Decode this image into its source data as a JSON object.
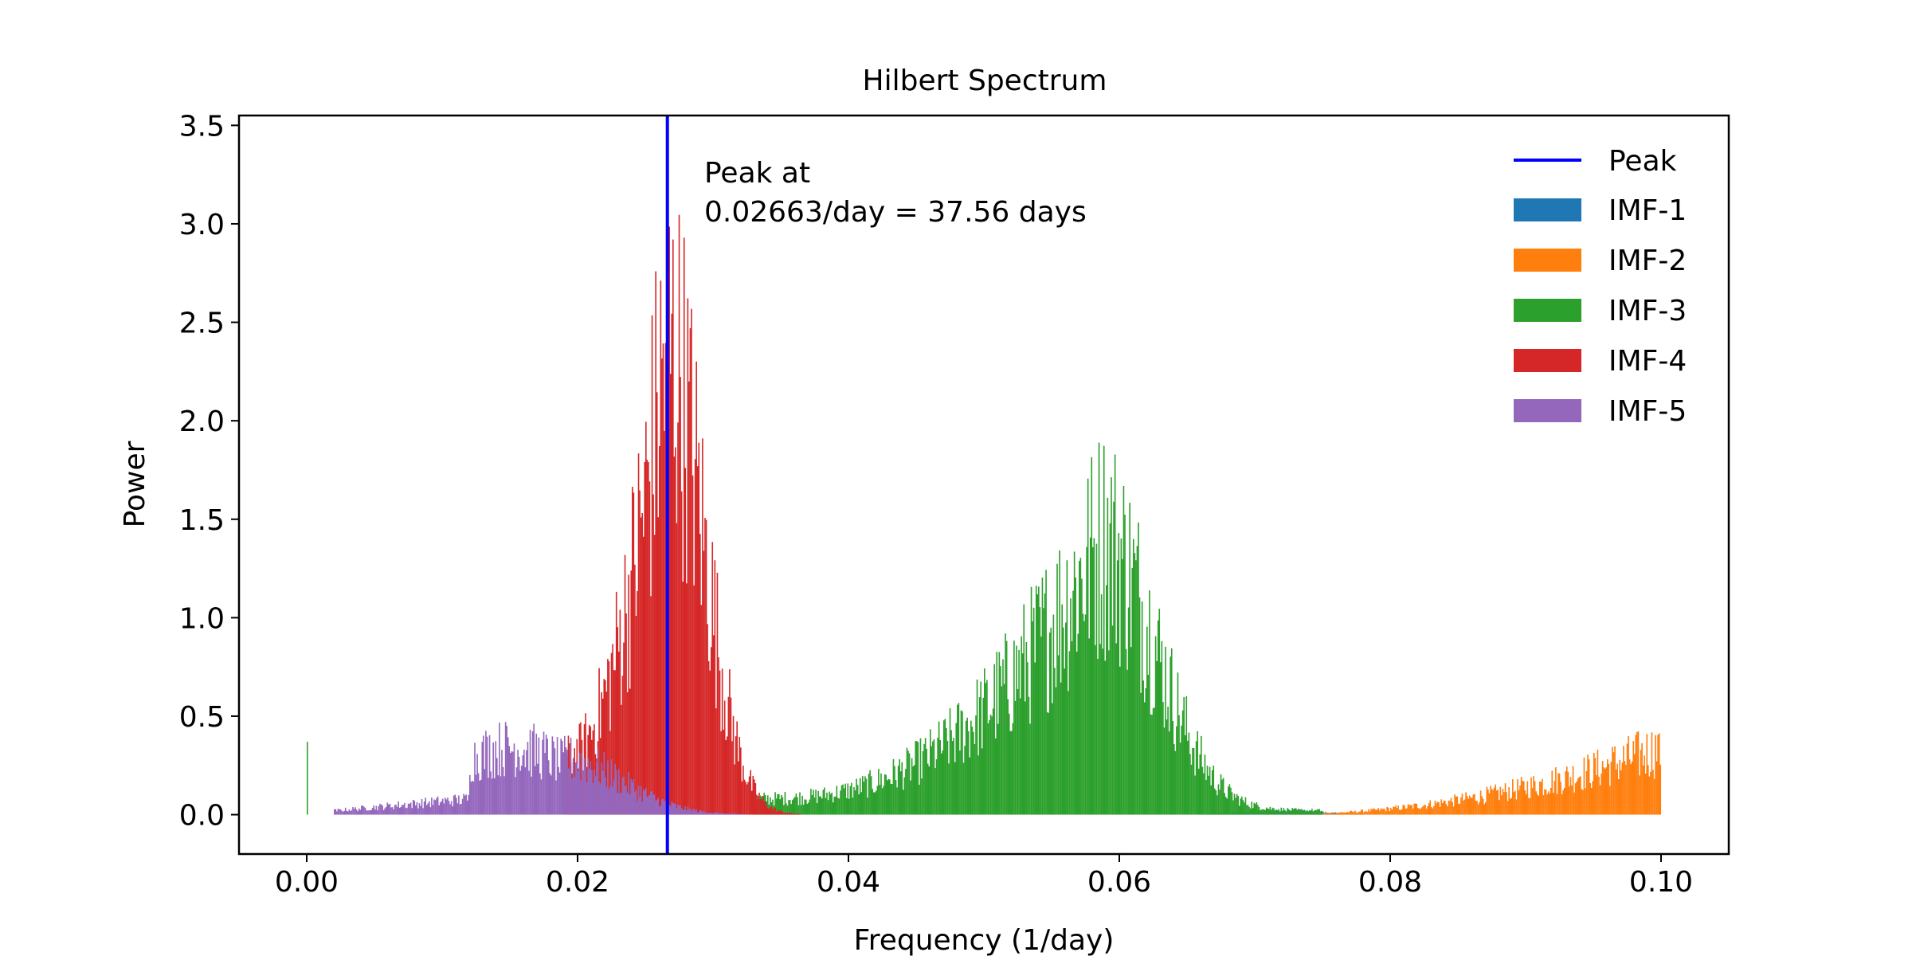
{
  "chart_data": {
    "type": "bar",
    "title": "Hilbert Spectrum",
    "xlabel": "Frequency (1/day)",
    "ylabel": "Power",
    "xlim": [
      -0.005,
      0.105
    ],
    "ylim": [
      -0.2,
      3.55
    ],
    "x_ticks": [
      "0.00",
      "0.02",
      "0.04",
      "0.06",
      "0.08",
      "0.10"
    ],
    "y_ticks": [
      "0.0",
      "0.5",
      "1.0",
      "1.5",
      "2.0",
      "2.5",
      "3.0",
      "3.5"
    ],
    "grid": false,
    "legend_position": "top-right",
    "peak": {
      "label": "Peak",
      "x": 0.02663,
      "color": "#0000ff",
      "annotation_line1": "Peak at",
      "annotation_line2": "0.02663/day = 37.56 days"
    },
    "series": [
      {
        "name": "IMF-1",
        "color": "#1f77b4",
        "center": 0.072,
        "max": 0.04
      },
      {
        "name": "IMF-2",
        "color": "#ff7f0e",
        "center": 0.1,
        "max": 0.44
      },
      {
        "name": "IMF-3",
        "color": "#2ca02c",
        "center": 0.0575,
        "max": 2.15
      },
      {
        "name": "IMF-4",
        "color": "#d62728",
        "center": 0.0265,
        "max": 3.15
      },
      {
        "name": "IMF-5",
        "color": "#9467bd",
        "center": 0.016,
        "max": 0.56
      }
    ]
  }
}
